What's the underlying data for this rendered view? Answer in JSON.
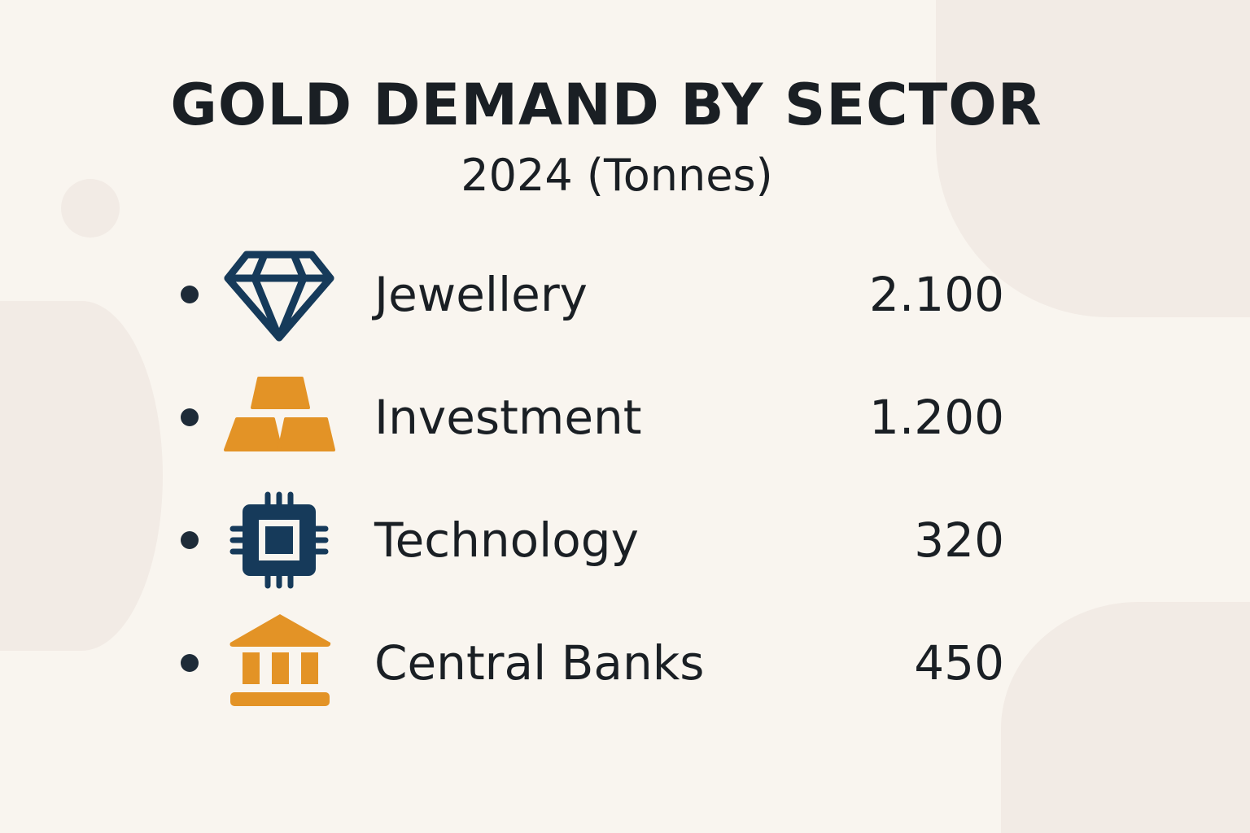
{
  "title": "GOLD DEMAND BY SECTOR",
  "subtitle": "2024 (Tonnes)",
  "colors": {
    "navy": "#163a5a",
    "gold": "#e39326",
    "background": "#f9f5ef"
  },
  "items": [
    {
      "label": "Jewellery",
      "value": "2.100",
      "icon": "diamond-icon"
    },
    {
      "label": "Investment",
      "value": "1.200",
      "icon": "gold-bars-icon"
    },
    {
      "label": "Technology",
      "value": "320",
      "icon": "microchip-icon"
    },
    {
      "label": "Central Banks",
      "value": "450",
      "icon": "bank-icon"
    }
  ]
}
